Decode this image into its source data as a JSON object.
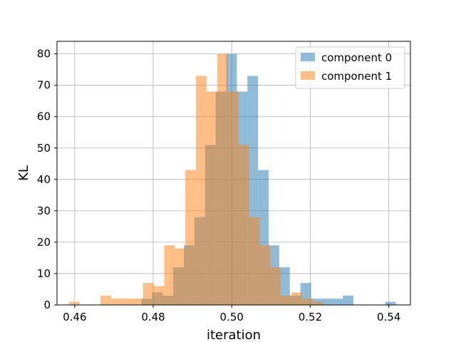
{
  "chart_data": {
    "type": "histogram",
    "title": "",
    "xlabel": "iteration",
    "ylabel": "KL",
    "xlim": [
      0.4555,
      0.5455
    ],
    "ylim": [
      0,
      84
    ],
    "grid": true,
    "legend_position": "top-right",
    "x_ticks": [
      {
        "value": 0.46,
        "label": "0.46"
      },
      {
        "value": 0.48,
        "label": "0.48"
      },
      {
        "value": 0.5,
        "label": "0.50"
      },
      {
        "value": 0.52,
        "label": "0.52"
      },
      {
        "value": 0.54,
        "label": "0.54"
      }
    ],
    "y_ticks": [
      {
        "value": 0,
        "label": "0"
      },
      {
        "value": 10,
        "label": "10"
      },
      {
        "value": 20,
        "label": "20"
      },
      {
        "value": 30,
        "label": "30"
      },
      {
        "value": 40,
        "label": "40"
      },
      {
        "value": 50,
        "label": "50"
      },
      {
        "value": 60,
        "label": "60"
      },
      {
        "value": 70,
        "label": "70"
      },
      {
        "value": 80,
        "label": "80"
      }
    ],
    "series": [
      {
        "name": "component 0",
        "color": "#1f77b4",
        "alpha": 0.5,
        "bin_edges": [
          0.477,
          0.4797,
          0.4824,
          0.4851,
          0.4878,
          0.4905,
          0.4932,
          0.4959,
          0.4986,
          0.5013,
          0.504,
          0.5067,
          0.5094,
          0.5121,
          0.5148,
          0.5175,
          0.5202,
          0.5229,
          0.5256,
          0.5283,
          0.531,
          0.5337,
          0.5364,
          0.5391,
          0.5418
        ],
        "counts": [
          2,
          4,
          3,
          12,
          19,
          28,
          51,
          68,
          80,
          68,
          73,
          43,
          19,
          12,
          3,
          7,
          2,
          2,
          2,
          3,
          0,
          0,
          0,
          1
        ]
      },
      {
        "name": "component 1",
        "color": "#ff7f0e",
        "alpha": 0.5,
        "bin_edges": [
          0.4585,
          0.4612,
          0.4639,
          0.4666,
          0.4693,
          0.472,
          0.4747,
          0.4774,
          0.4801,
          0.4828,
          0.4855,
          0.4882,
          0.4909,
          0.4936,
          0.4963,
          0.499,
          0.5017,
          0.5044,
          0.5071,
          0.5098,
          0.5125,
          0.5152,
          0.5179,
          0.5206,
          0.5233,
          0.526
        ],
        "counts": [
          1,
          0,
          0,
          3,
          2,
          2,
          2,
          7,
          6,
          19,
          18,
          43,
          73,
          68,
          80,
          68,
          51,
          28,
          19,
          12,
          3,
          4,
          2,
          1,
          0
        ]
      }
    ]
  }
}
